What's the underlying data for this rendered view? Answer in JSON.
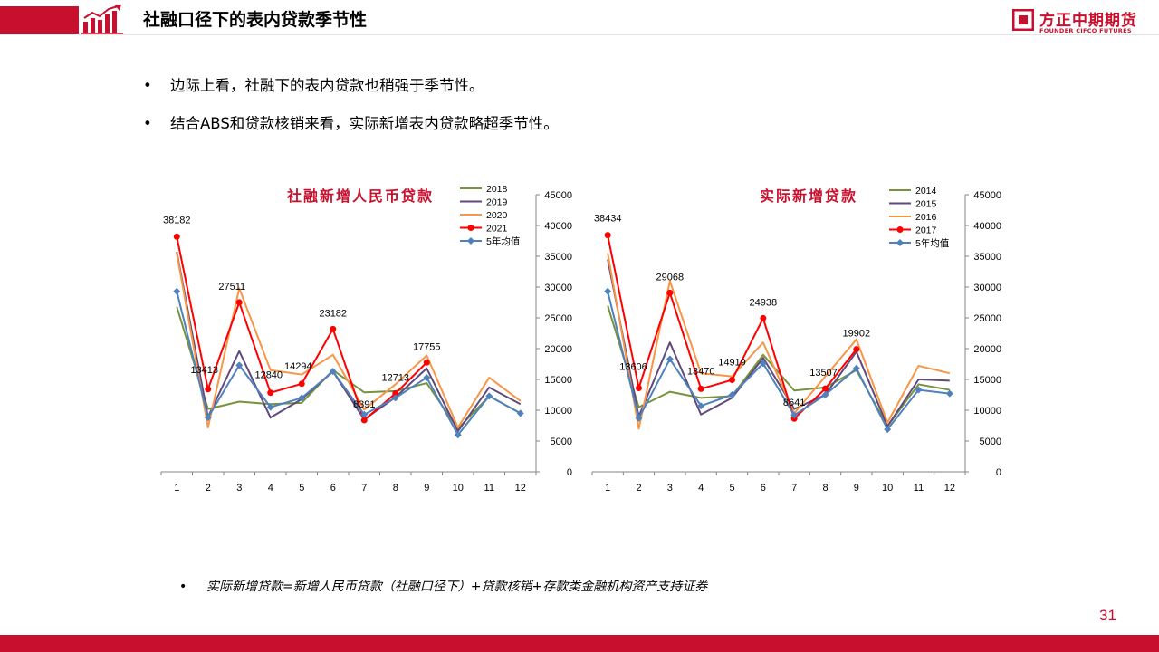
{
  "page": {
    "title": "社融口径下的表内贷款季节性",
    "logo_cn": "方正中期期货",
    "logo_en": "FOUNDER CIFCO FUTURES",
    "bullets": [
      "边际上看，社融下的表内贷款也稍强于季节性。",
      "结合ABS和贷款核销来看，实际新增表内贷款略超季节性。"
    ],
    "note": "实际新增贷款=新增人民币贷款（社融口径下）+贷款核销+存款类金融机构资产支持证券",
    "bullet_symbol": "•",
    "page_number": "31"
  },
  "colors": {
    "brand_red": "#c8102e",
    "series_green": "#77933c",
    "series_purple": "#604a7b",
    "series_orange": "#f79646",
    "series_red": "#ff0000",
    "series_blue": "#4f81bd"
  },
  "chart_data": [
    {
      "type": "line",
      "title": "社融新增人民币贷款",
      "categories": [
        "1",
        "2",
        "3",
        "4",
        "5",
        "6",
        "7",
        "8",
        "9",
        "10",
        "11",
        "12"
      ],
      "ylim": [
        0,
        45000
      ],
      "yticks": [
        "0",
        "5000",
        "10000",
        "15000",
        "20000",
        "25000",
        "30000",
        "35000",
        "40000",
        "45000"
      ],
      "y_axis_side": "right",
      "legend_position": "top-right",
      "grid": false,
      "series": [
        {
          "name": "2018",
          "color": "#77933c",
          "marker": "none",
          "values": [
            26800,
            10200,
            11400,
            11000,
            11200,
            16500,
            12900,
            13100,
            14400,
            7000,
            12300,
            9500
          ]
        },
        {
          "name": "2019",
          "color": "#604a7b",
          "marker": "none",
          "values": [
            35700,
            8900,
            19600,
            8800,
            11800,
            16300,
            8500,
            12100,
            16800,
            6600,
            13700,
            11000
          ]
        },
        {
          "name": "2020",
          "color": "#f79646",
          "marker": "none",
          "values": [
            35500,
            7200,
            29800,
            16500,
            15800,
            19000,
            10100,
            14200,
            18900,
            7200,
            15300,
            11500
          ]
        },
        {
          "name": "2021",
          "color": "#ff0000",
          "marker": "circle",
          "values": [
            38182,
            13413,
            27511,
            12840,
            14294,
            23182,
            8391,
            12713,
            17755,
            null,
            null,
            null
          ]
        },
        {
          "name": "5年均值",
          "color": "#4f81bd",
          "marker": "diamond",
          "values": [
            29300,
            8800,
            17300,
            10500,
            12000,
            16300,
            9300,
            12000,
            15300,
            6000,
            12300,
            9500
          ]
        }
      ],
      "data_labels": [
        "38182",
        "13413",
        "27511",
        "12840",
        "14294",
        "23182",
        "8391",
        "12713",
        "17755"
      ]
    },
    {
      "type": "line",
      "title": "实际新增贷款",
      "categories": [
        "1",
        "2",
        "3",
        "4",
        "5",
        "6",
        "7",
        "8",
        "9",
        "10",
        "11",
        "12"
      ],
      "ylim": [
        0,
        45000
      ],
      "yticks": [
        "0",
        "5000",
        "10000",
        "15000",
        "20000",
        "25000",
        "30000",
        "35000",
        "40000",
        "45000"
      ],
      "y_axis_side": "right",
      "legend_position": "top-right",
      "grid": false,
      "series": [
        {
          "name": "2014",
          "color": "#77933c",
          "marker": "none",
          "values": [
            27000,
            10500,
            13000,
            12000,
            12300,
            19000,
            13200,
            13700,
            16500,
            7400,
            14200,
            13300
          ]
        },
        {
          "name": "2015",
          "color": "#604a7b",
          "marker": "none",
          "values": [
            34500,
            9000,
            21000,
            9300,
            12000,
            18500,
            10200,
            12500,
            19500,
            7400,
            15000,
            14800
          ]
        },
        {
          "name": "2016",
          "color": "#f79646",
          "marker": "none",
          "values": [
            35500,
            7000,
            31000,
            16000,
            15500,
            21000,
            9500,
            15500,
            21500,
            8000,
            17200,
            16000
          ]
        },
        {
          "name": "2017",
          "color": "#ff0000",
          "marker": "circle",
          "values": [
            38434,
            13606,
            29068,
            13470,
            14919,
            24938,
            8641,
            13507,
            19902,
            null,
            null,
            null
          ]
        },
        {
          "name": "5年均值",
          "color": "#4f81bd",
          "marker": "diamond",
          "values": [
            29300,
            8700,
            18300,
            10700,
            12500,
            17600,
            9200,
            12500,
            16800,
            6900,
            13300,
            12700
          ]
        }
      ],
      "data_labels": [
        "38434",
        "13606",
        "29068",
        "13470",
        "14919",
        "24938",
        "8641",
        "13507",
        "19902"
      ]
    }
  ]
}
